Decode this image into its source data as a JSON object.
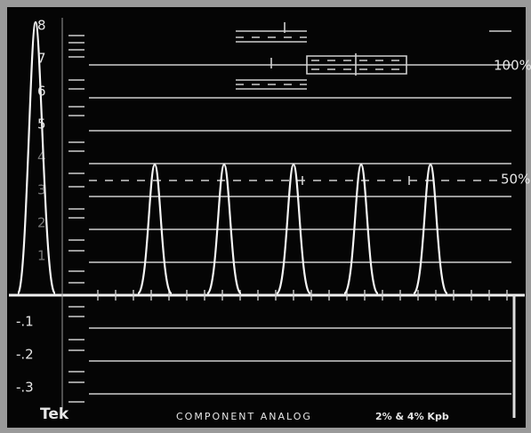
{
  "scale_labels": [
    "8",
    "7",
    "6",
    "5",
    "4",
    "3",
    "2",
    "1"
  ],
  "negative_labels": [
    "-.1",
    "-.2",
    "-.3"
  ],
  "reference_labels": {
    "full": "100%",
    "half": "50%"
  },
  "footer": {
    "brand": "Tek",
    "mode": "COMPONENT ANALOG",
    "setting": "2% & 4% Kpb"
  }
}
